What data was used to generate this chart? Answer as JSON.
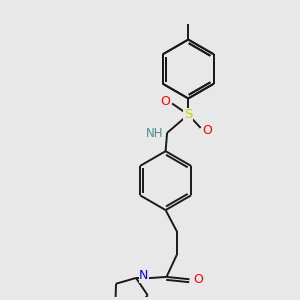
{
  "background_color": "#e8e8e8",
  "bond_color": "#1a1a1a",
  "atom_colors": {
    "N": "#0000ff",
    "O": "#ff0000",
    "S": "#cccc00",
    "H": "#4a9090",
    "C": "#1a1a1a"
  },
  "figsize": [
    3.0,
    3.0
  ],
  "dpi": 100,
  "lw": 1.4,
  "dbl_off": 0.1
}
